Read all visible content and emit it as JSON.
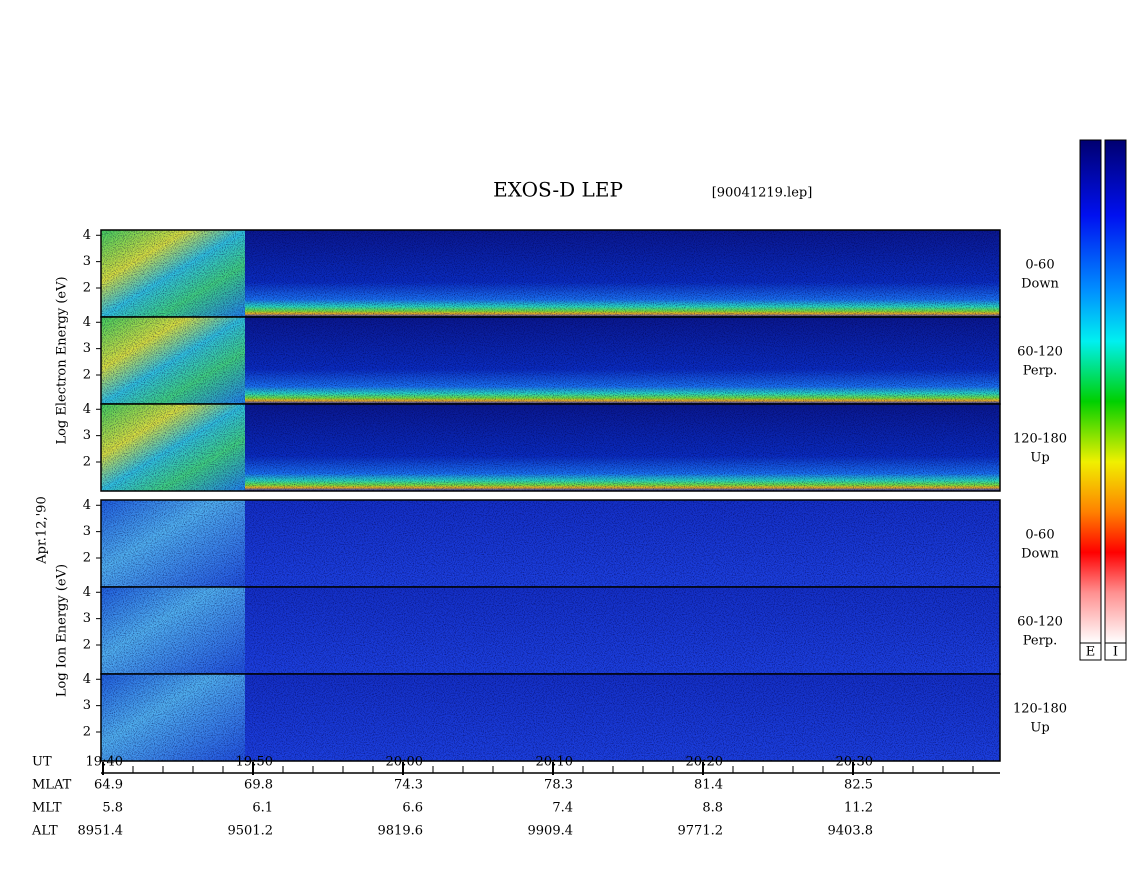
{
  "title": "EXOS-D LEP",
  "file": "[90041219.lep]",
  "date": "Apr.12,'90",
  "groups": [
    {
      "ylabel": "Log Electron Energy (eV)",
      "ylim": [
        0.9,
        4.2
      ],
      "yticks": [
        2,
        3,
        4
      ],
      "panels": [
        [
          "0-60",
          "Down"
        ],
        [
          "60-120",
          "Perp."
        ],
        [
          "120-180",
          "Up"
        ]
      ]
    },
    {
      "ylabel": "Log Ion Energy (eV)",
      "ylim": [
        0.9,
        4.2
      ],
      "yticks": [
        2,
        3,
        4
      ],
      "panels": [
        [
          "0-60",
          "Down"
        ],
        [
          "60-120",
          "Perp."
        ],
        [
          "120-180",
          "Up"
        ]
      ]
    }
  ],
  "time_axis": {
    "rows": [
      {
        "name": "UT",
        "values": [
          "19:40",
          "19:50",
          "20:00",
          "20:10",
          "20:20",
          "20:30"
        ]
      },
      {
        "name": "MLAT",
        "values": [
          64.9,
          69.8,
          74.3,
          78.3,
          81.4,
          82.5
        ]
      },
      {
        "name": "MLT",
        "values": [
          5.8,
          6.1,
          6.6,
          7.4,
          8.8,
          11.2
        ]
      },
      {
        "name": "ALT",
        "values": [
          8951.4,
          9501.2,
          9819.6,
          9909.4,
          9771.2,
          9403.8
        ]
      }
    ]
  },
  "colorbar": {
    "labels": [
      "E",
      "I"
    ]
  }
}
